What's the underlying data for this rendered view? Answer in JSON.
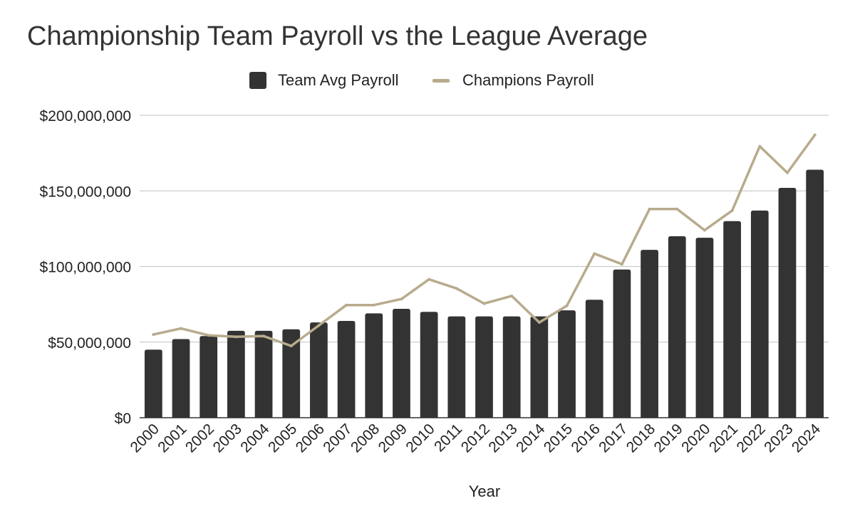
{
  "chart_data": {
    "type": "bar",
    "title": "Championship Team Payroll vs the League Average",
    "xlabel": "Year",
    "ylabel": "",
    "ylim": [
      0,
      200000000
    ],
    "yticks": [
      {
        "value": 0,
        "label": "$0"
      },
      {
        "value": 50000000,
        "label": "$50,000,000"
      },
      {
        "value": 100000000,
        "label": "$100,000,000"
      },
      {
        "value": 150000000,
        "label": "$150,000,000"
      },
      {
        "value": 200000000,
        "label": "$200,000,000"
      }
    ],
    "grid": true,
    "legend_position": "top-center",
    "categories": [
      "2000",
      "2001",
      "2002",
      "2003",
      "2004",
      "2005",
      "2006",
      "2007",
      "2008",
      "2009",
      "2010",
      "2011",
      "2012",
      "2013",
      "2014",
      "2015",
      "2016",
      "2017",
      "2018",
      "2019",
      "2020",
      "2021",
      "2022",
      "2023",
      "2024"
    ],
    "series": [
      {
        "name": "Team Avg Payroll",
        "type": "bar",
        "color": "#333333",
        "values": [
          45000000,
          52000000,
          54000000,
          57500000,
          57500000,
          58500000,
          63000000,
          64000000,
          69000000,
          72000000,
          70000000,
          67000000,
          67000000,
          67000000,
          67000000,
          71000000,
          78000000,
          98000000,
          111000000,
          120000000,
          119000000,
          130000000,
          137000000,
          152000000,
          164000000
        ]
      },
      {
        "name": "Champions Payroll",
        "type": "line",
        "color": "#b8ab8d",
        "values": [
          55000000,
          59000000,
          54500000,
          53500000,
          54000000,
          47500000,
          61000000,
          74500000,
          74500000,
          78500000,
          91500000,
          85500000,
          75500000,
          80500000,
          63000000,
          74000000,
          108500000,
          101500000,
          138000000,
          138000000,
          124000000,
          137000000,
          179500000,
          162000000,
          187000000
        ]
      }
    ]
  }
}
